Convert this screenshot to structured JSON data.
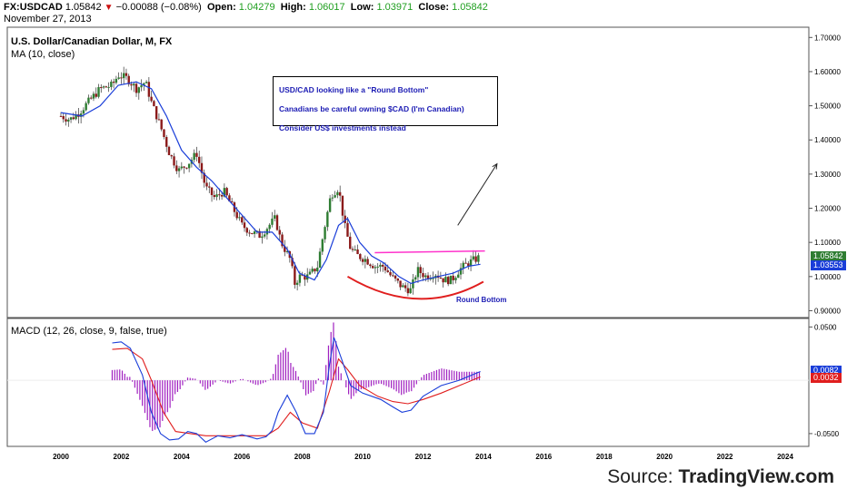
{
  "header": {
    "symbol": "FX:USDCAD",
    "last": "1.05842",
    "change": "−0.00088 (−0.08%)",
    "open_label": "Open:",
    "open": "1.04279",
    "high_label": "High:",
    "high": "1.06017",
    "low_label": "Low:",
    "low": "1.03971",
    "close_label": "Close:",
    "close": "1.05842",
    "date": "November 27, 2013"
  },
  "price_pane": {
    "title": "U.S. Dollar/Canadian Dollar, M, FX",
    "indicator": "MA (10, close)",
    "last_price_tag": "1.05842",
    "ma_tag": "1.03553",
    "colors": {
      "up": "#2e7d32",
      "down": "#8b1a1a",
      "ma": "#1a3ed9",
      "resistance": "#ff33cc",
      "bottom": "#e01e1e"
    }
  },
  "macd_pane": {
    "title": "MACD (12, 26, close, 9, false, true)",
    "macd_tag": "0.0082",
    "signal_tag": "0.0032",
    "colors": {
      "macd": "#1a3ed9",
      "signal": "#e01e1e",
      "hist": "#a020c0"
    }
  },
  "annotations": {
    "note_lines": [
      "USD/CAD looking like a \"Round Bottom\"",
      "Canadians be careful owning $CAD (I'm Canadian)",
      "Consider US$ investments instead"
    ],
    "round_bottom_label": "Round Bottom"
  },
  "source": {
    "prefix": "Source: ",
    "name": "TradingView.com"
  },
  "chart_data": [
    {
      "type": "candlestick",
      "title": "U.S. Dollar/Canadian Dollar, M, FX",
      "x_ticks": [
        "2000",
        "2002",
        "2004",
        "2006",
        "2008",
        "2010",
        "2012",
        "2014",
        "2016",
        "2018",
        "2020",
        "2022",
        "2024"
      ],
      "y_ticks": [
        "0.90000",
        "1.00000",
        "1.10000",
        "1.20000",
        "1.30000",
        "1.40000",
        "1.50000",
        "1.60000",
        "1.70000"
      ],
      "ylim": [
        0.88,
        1.73
      ],
      "close_path": [
        [
          2000.0,
          1.47
        ],
        [
          2000.3,
          1.46
        ],
        [
          2000.6,
          1.48
        ],
        [
          2000.9,
          1.51
        ],
        [
          2001.3,
          1.55
        ],
        [
          2001.7,
          1.56
        ],
        [
          2001.9,
          1.59
        ],
        [
          2002.2,
          1.58
        ],
        [
          2002.5,
          1.55
        ],
        [
          2002.8,
          1.57
        ],
        [
          2003.0,
          1.51
        ],
        [
          2003.3,
          1.44
        ],
        [
          2003.6,
          1.36
        ],
        [
          2003.9,
          1.31
        ],
        [
          2004.2,
          1.33
        ],
        [
          2004.5,
          1.36
        ],
        [
          2004.8,
          1.26
        ],
        [
          2005.1,
          1.23
        ],
        [
          2005.4,
          1.25
        ],
        [
          2005.7,
          1.2
        ],
        [
          2006.0,
          1.15
        ],
        [
          2006.3,
          1.13
        ],
        [
          2006.6,
          1.12
        ],
        [
          2006.9,
          1.15
        ],
        [
          2007.1,
          1.17
        ],
        [
          2007.3,
          1.1
        ],
        [
          2007.6,
          1.05
        ],
        [
          2007.75,
          0.98
        ],
        [
          2007.9,
          1.0
        ],
        [
          2008.2,
          1.0
        ],
        [
          2008.5,
          1.03
        ],
        [
          2008.75,
          1.15
        ],
        [
          2008.95,
          1.24
        ],
        [
          2009.2,
          1.26
        ],
        [
          2009.4,
          1.15
        ],
        [
          2009.6,
          1.08
        ],
        [
          2009.85,
          1.06
        ],
        [
          2010.1,
          1.05
        ],
        [
          2010.4,
          1.03
        ],
        [
          2010.7,
          1.03
        ],
        [
          2010.95,
          1.0
        ],
        [
          2011.3,
          0.97
        ],
        [
          2011.6,
          0.96
        ],
        [
          2011.8,
          1.02
        ],
        [
          2012.1,
          1.0
        ],
        [
          2012.4,
          1.01
        ],
        [
          2012.7,
          0.99
        ],
        [
          2012.95,
          0.99
        ],
        [
          2013.2,
          1.02
        ],
        [
          2013.5,
          1.04
        ],
        [
          2013.9,
          1.058
        ]
      ],
      "ma_10": [
        [
          2000.0,
          1.48
        ],
        [
          2000.7,
          1.47
        ],
        [
          2001.3,
          1.5
        ],
        [
          2001.9,
          1.56
        ],
        [
          2002.5,
          1.57
        ],
        [
          2003.0,
          1.55
        ],
        [
          2003.5,
          1.47
        ],
        [
          2004.0,
          1.37
        ],
        [
          2004.5,
          1.32
        ],
        [
          2005.0,
          1.28
        ],
        [
          2005.5,
          1.23
        ],
        [
          2006.0,
          1.18
        ],
        [
          2006.5,
          1.13
        ],
        [
          2007.0,
          1.13
        ],
        [
          2007.5,
          1.08
        ],
        [
          2007.9,
          1.01
        ],
        [
          2008.4,
          0.99
        ],
        [
          2008.8,
          1.05
        ],
        [
          2009.2,
          1.15
        ],
        [
          2009.5,
          1.17
        ],
        [
          2009.9,
          1.1
        ],
        [
          2010.3,
          1.06
        ],
        [
          2010.7,
          1.04
        ],
        [
          2011.2,
          1.0
        ],
        [
          2011.6,
          0.98
        ],
        [
          2012.0,
          0.99
        ],
        [
          2012.5,
          1.0
        ],
        [
          2013.0,
          1.01
        ],
        [
          2013.5,
          1.03
        ],
        [
          2013.9,
          1.036
        ]
      ],
      "resistance_line": {
        "from": [
          2010.4,
          1.07
        ],
        "to": [
          2014.05,
          1.075
        ]
      },
      "round_bottom_curve": [
        [
          2009.5,
          1.0
        ],
        [
          2011.8,
          0.935
        ],
        [
          2014.0,
          0.985
        ]
      ],
      "trend_arrow": {
        "from": [
          2013.15,
          1.15
        ],
        "to": [
          2014.45,
          1.33
        ]
      }
    },
    {
      "type": "line",
      "title": "MACD (12, 26, close, 9, false, true)",
      "y_ticks": [
        "-0.0500",
        "0.0500"
      ],
      "ylim": [
        -0.062,
        0.058
      ],
      "series": [
        {
          "name": "MACD",
          "points": [
            [
              2001.7,
              0.035
            ],
            [
              2002.0,
              0.036
            ],
            [
              2002.3,
              0.03
            ],
            [
              2002.7,
              0.005
            ],
            [
              2003.0,
              -0.03
            ],
            [
              2003.3,
              -0.05
            ],
            [
              2003.6,
              -0.056
            ],
            [
              2003.9,
              -0.055
            ],
            [
              2004.2,
              -0.048
            ],
            [
              2004.5,
              -0.05
            ],
            [
              2004.8,
              -0.058
            ],
            [
              2005.2,
              -0.052
            ],
            [
              2005.6,
              -0.054
            ],
            [
              2006.0,
              -0.051
            ],
            [
              2006.5,
              -0.055
            ],
            [
              2006.8,
              -0.053
            ],
            [
              2007.0,
              -0.047
            ],
            [
              2007.2,
              -0.03
            ],
            [
              2007.5,
              -0.014
            ],
            [
              2007.8,
              -0.03
            ],
            [
              2008.1,
              -0.05
            ],
            [
              2008.4,
              -0.05
            ],
            [
              2008.7,
              -0.03
            ],
            [
              2008.9,
              0.015
            ],
            [
              2009.05,
              0.04
            ],
            [
              2009.3,
              0.02
            ],
            [
              2009.6,
              -0.005
            ],
            [
              2010.0,
              -0.012
            ],
            [
              2010.6,
              -0.018
            ],
            [
              2011.0,
              -0.025
            ],
            [
              2011.3,
              -0.03
            ],
            [
              2011.6,
              -0.028
            ],
            [
              2012.0,
              -0.015
            ],
            [
              2012.6,
              -0.005
            ],
            [
              2013.2,
              0.0
            ],
            [
              2013.9,
              0.0082
            ]
          ]
        },
        {
          "name": "Signal",
          "points": [
            [
              2001.7,
              0.029
            ],
            [
              2002.2,
              0.03
            ],
            [
              2002.7,
              0.02
            ],
            [
              2003.0,
              0.0
            ],
            [
              2003.4,
              -0.03
            ],
            [
              2003.8,
              -0.048
            ],
            [
              2004.3,
              -0.05
            ],
            [
              2004.8,
              -0.052
            ],
            [
              2005.5,
              -0.052
            ],
            [
              2006.2,
              -0.052
            ],
            [
              2006.8,
              -0.052
            ],
            [
              2007.2,
              -0.045
            ],
            [
              2007.6,
              -0.03
            ],
            [
              2008.0,
              -0.04
            ],
            [
              2008.5,
              -0.045
            ],
            [
              2008.9,
              -0.01
            ],
            [
              2009.2,
              0.02
            ],
            [
              2009.5,
              0.01
            ],
            [
              2009.9,
              -0.005
            ],
            [
              2010.5,
              -0.015
            ],
            [
              2011.0,
              -0.02
            ],
            [
              2011.5,
              -0.022
            ],
            [
              2012.0,
              -0.018
            ],
            [
              2012.6,
              -0.012
            ],
            [
              2013.2,
              -0.005
            ],
            [
              2013.9,
              0.0032
            ]
          ]
        }
      ]
    }
  ]
}
